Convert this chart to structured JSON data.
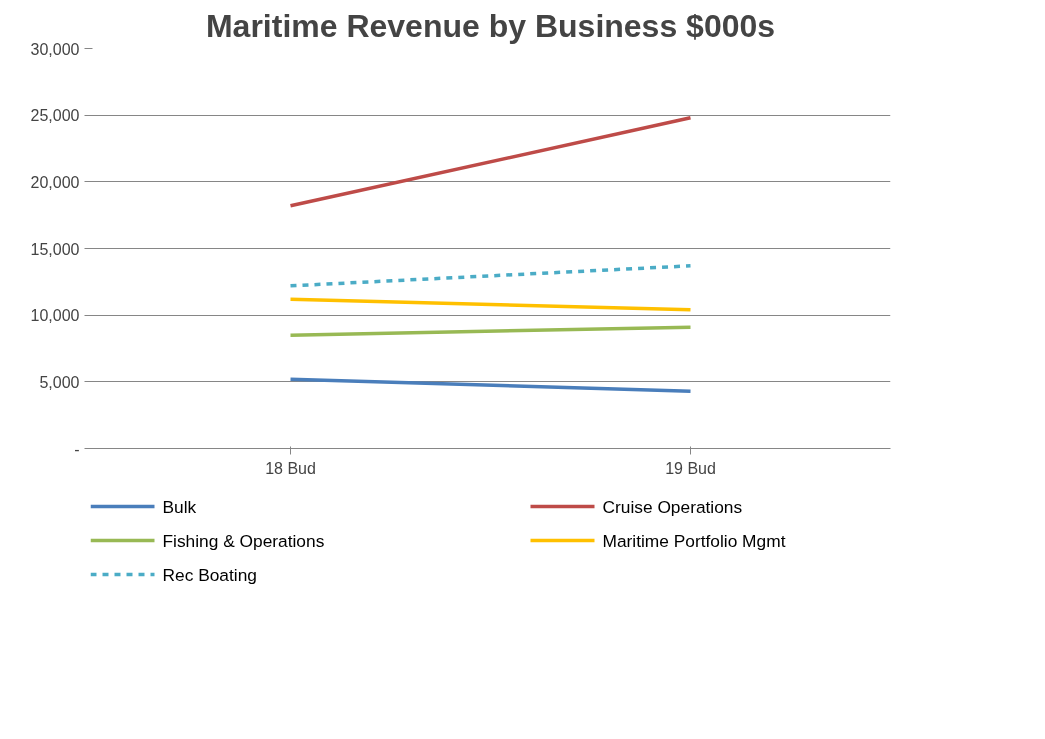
{
  "chart_data": {
    "type": "line",
    "title": "Maritime Revenue by Business $000s",
    "categories": [
      "18 Bud",
      "19 Bud"
    ],
    "series": [
      {
        "name": "Bulk",
        "color": "#4a7ebb",
        "values": [
          5200,
          4300
        ]
      },
      {
        "name": "Cruise Operations",
        "color": "#be4b48",
        "values": [
          18200,
          24800
        ]
      },
      {
        "name": "Fishing & Operations",
        "color": "#98b954",
        "values": [
          8500,
          9100
        ]
      },
      {
        "name": "Maritime Portfolio Mgmt",
        "color": "#ffc000",
        "values": [
          11200,
          10400
        ]
      },
      {
        "name": "Rec Boating",
        "color": "#4bacc6",
        "values": [
          12200,
          13700
        ],
        "line_style": "dashed"
      }
    ],
    "ylim": [
      0,
      30000
    ],
    "yticks": [
      {
        "value": 0,
        "label": "-"
      },
      {
        "value": 5000,
        "label": "5,000"
      },
      {
        "value": 10000,
        "label": "10,000"
      },
      {
        "value": 15000,
        "label": "15,000"
      },
      {
        "value": 20000,
        "label": "20,000"
      },
      {
        "value": 25000,
        "label": "25,000"
      },
      {
        "value": 30000,
        "label": "30,000"
      }
    ],
    "grid": "y",
    "legend": "bottom",
    "marker": "none",
    "line_style": "solid"
  }
}
